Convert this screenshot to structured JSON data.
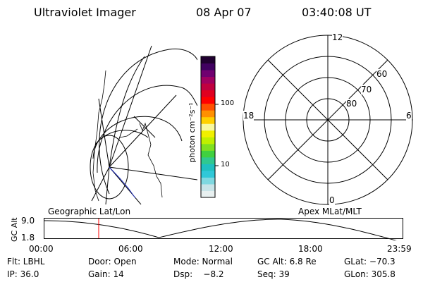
{
  "header": {
    "instrument": "Ultraviolet Imager",
    "date": "08 Apr 07",
    "time": "03:40:08 UT"
  },
  "colorbar": {
    "unit_label": "photon cm⁻²s⁻¹",
    "tick_100": "100",
    "tick_10": "10",
    "colors": [
      "#e8f0f0",
      "#c8e4e8",
      "#7fd8e0",
      "#30c8d8",
      "#20c0c0",
      "#30c890",
      "#40d040",
      "#80e020",
      "#c0f000",
      "#f0f000",
      "#f8f8a0",
      "#ffd000",
      "#ff9000",
      "#ff5000",
      "#ff0000",
      "#e00020",
      "#c00040",
      "#a00060",
      "#700070",
      "#400060",
      "#200030"
    ]
  },
  "geo_plot": {
    "title": "Geographic Lat/Lon"
  },
  "polar_plot": {
    "title": "Apex MLat/MLT",
    "mlt_top": "12",
    "mlt_left": "18",
    "mlt_right": "6",
    "mlt_bottom": "0",
    "lat_60": "60",
    "lat_70": "70",
    "lat_80": "80"
  },
  "altitude_plot": {
    "ylabel": "GC Alt",
    "y_top": "9.0",
    "y_bottom": "1.8",
    "x_ticks": [
      "00:00",
      "06:00",
      "12:00",
      "18:00",
      "23:59"
    ],
    "marker_time_hours": 3.67,
    "marker_color": "#ff0000"
  },
  "info": {
    "filter": "Flt: LBHL",
    "door": "Door: Open",
    "mode": "Mode: Normal",
    "gc_alt": "GC Alt: 6.8 Re",
    "glat": "GLat: −70.3",
    "ip": "IP: 36.0",
    "gain": "Gain: 14",
    "dsp": "Dsp:    −8.2",
    "seq": "Seq: 39",
    "glon": "GLon: 305.8"
  }
}
